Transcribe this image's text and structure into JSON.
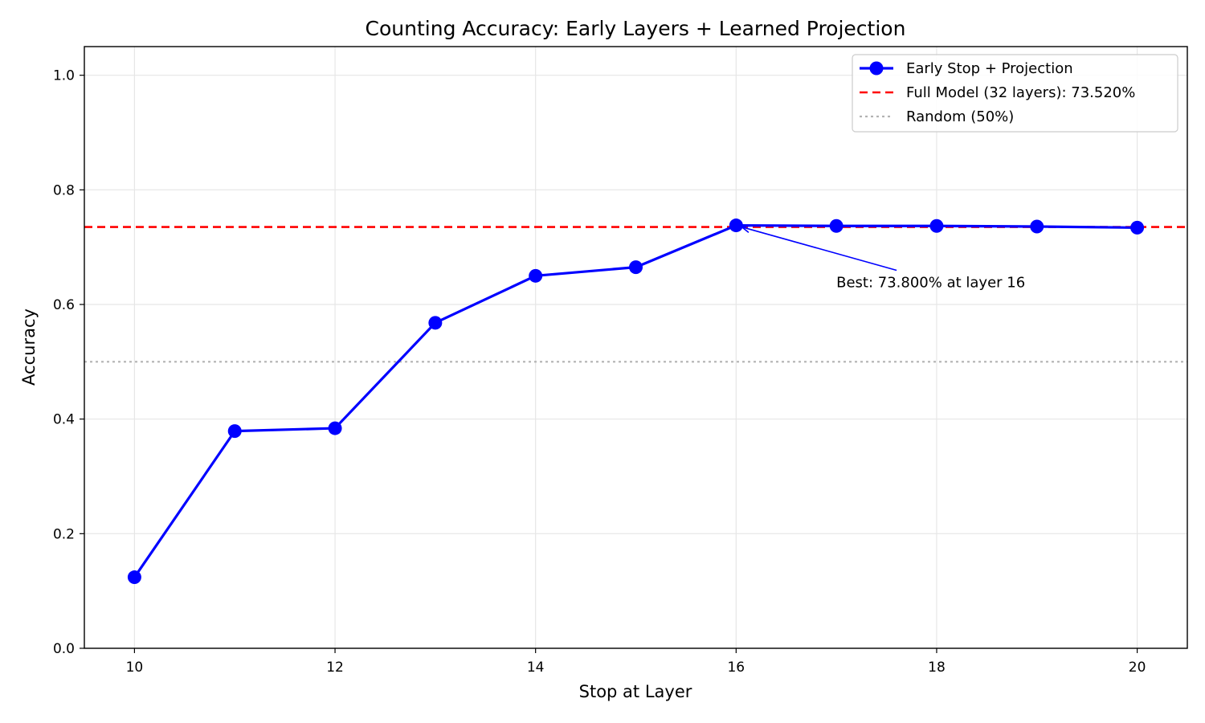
{
  "chart_data": {
    "type": "line",
    "title": "Counting Accuracy: Early Layers + Learned Projection",
    "xlabel": "Stop at Layer",
    "ylabel": "Accuracy",
    "xlim": [
      9.5,
      20.5
    ],
    "ylim": [
      0.0,
      1.05
    ],
    "xticks": [
      10,
      12,
      14,
      16,
      18,
      20
    ],
    "xtick_labels": [
      "10",
      "12",
      "14",
      "16",
      "18",
      "20"
    ],
    "yticks": [
      0.0,
      0.2,
      0.4,
      0.6,
      0.8,
      1.0
    ],
    "ytick_labels": [
      "0.0",
      "0.2",
      "0.4",
      "0.6",
      "0.8",
      "1.0"
    ],
    "grid": true,
    "legend_position": "top-right",
    "x": [
      10,
      11,
      12,
      13,
      14,
      15,
      16,
      17,
      18,
      19,
      20
    ],
    "series": [
      {
        "name": "Early Stop + Projection",
        "values": [
          0.124,
          0.379,
          0.384,
          0.568,
          0.65,
          0.665,
          0.738,
          0.737,
          0.737,
          0.736,
          0.734
        ],
        "color": "#0000ff",
        "style": "solid",
        "marker": "circle"
      }
    ],
    "reference_lines": [
      {
        "name": "Full Model (32 layers): 73.520%",
        "y": 0.7352,
        "color": "#ff0000",
        "style": "dashed"
      },
      {
        "name": "Random (50%)",
        "y": 0.5,
        "color": "#b3b3b3",
        "style": "dotted"
      }
    ],
    "annotations": [
      {
        "text": "Best: 73.800% at layer 16",
        "point_x": 16,
        "point_y": 0.738,
        "text_x": 17,
        "text_y": 0.64
      }
    ]
  }
}
